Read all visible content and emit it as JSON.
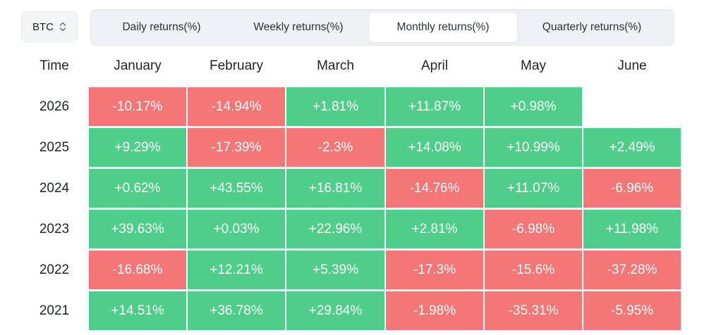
{
  "asset_select": {
    "value": "BTC"
  },
  "tabs": [
    {
      "label": "Daily returns(%)",
      "active": false
    },
    {
      "label": "Weekly returns(%)",
      "active": false
    },
    {
      "label": "Monthly returns(%)",
      "active": true
    },
    {
      "label": "Quarterly returns(%)",
      "active": false
    }
  ],
  "table": {
    "time_header": "Time",
    "months": [
      "January",
      "February",
      "March",
      "April",
      "May",
      "June"
    ],
    "rows": [
      {
        "year": "2026",
        "values": [
          "-10.17%",
          "-14.94%",
          "+1.81%",
          "+11.87%",
          "+0.98%",
          ""
        ]
      },
      {
        "year": "2025",
        "values": [
          "+9.29%",
          "-17.39%",
          "-2.3%",
          "+14.08%",
          "+10.99%",
          "+2.49%"
        ]
      },
      {
        "year": "2024",
        "values": [
          "+0.62%",
          "+43.55%",
          "+16.81%",
          "-14.76%",
          "+11.07%",
          "-6.96%"
        ]
      },
      {
        "year": "2023",
        "values": [
          "+39.63%",
          "+0.03%",
          "+22.96%",
          "+2.81%",
          "-6.98%",
          "+11.98%"
        ]
      },
      {
        "year": "2022",
        "values": [
          "-16.68%",
          "+12.21%",
          "+5.39%",
          "-17.3%",
          "-15.6%",
          "-37.28%"
        ]
      },
      {
        "year": "2021",
        "values": [
          "+14.51%",
          "+36.78%",
          "+29.84%",
          "-1.98%",
          "-35.31%",
          "-5.95%"
        ]
      }
    ]
  },
  "colors": {
    "positive": "#4fce89",
    "negative": "#f47676"
  },
  "icons": {
    "asset_select": "sort-arrows-icon"
  }
}
